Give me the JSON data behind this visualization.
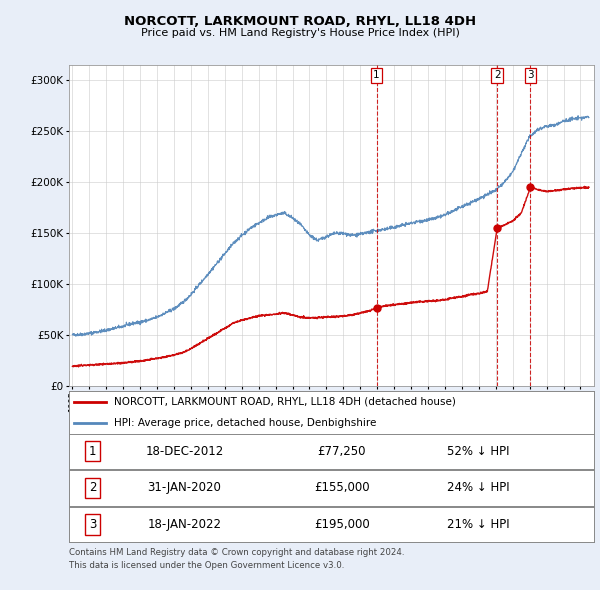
{
  "title": "NORCOTT, LARKMOUNT ROAD, RHYL, LL18 4DH",
  "subtitle": "Price paid vs. HM Land Registry's House Price Index (HPI)",
  "background_color": "#e8eef8",
  "plot_bg_color": "#ffffff",
  "ytick_values": [
    0,
    50000,
    100000,
    150000,
    200000,
    250000,
    300000
  ],
  "ylim": [
    0,
    315000
  ],
  "xlim_start": 1994.8,
  "xlim_end": 2025.8,
  "sale_dates": [
    2012.96,
    2020.08,
    2022.05
  ],
  "sale_prices": [
    77250,
    155000,
    195000
  ],
  "sale_labels": [
    "1",
    "2",
    "3"
  ],
  "vline_color": "#cc0000",
  "marker_color": "#cc0000",
  "legend_entries": [
    "NORCOTT, LARKMOUNT ROAD, RHYL, LL18 4DH (detached house)",
    "HPI: Average price, detached house, Denbighshire"
  ],
  "legend_line_colors": [
    "#cc0000",
    "#5588bb"
  ],
  "table_rows": [
    [
      "1",
      "18-DEC-2012",
      "£77,250",
      "52% ↓ HPI"
    ],
    [
      "2",
      "31-JAN-2020",
      "£155,000",
      "24% ↓ HPI"
    ],
    [
      "3",
      "18-JAN-2022",
      "£195,000",
      "21% ↓ HPI"
    ]
  ],
  "footnote": "Contains HM Land Registry data © Crown copyright and database right 2024.\nThis data is licensed under the Open Government Licence v3.0.",
  "hpi_line_color": "#5588bb",
  "price_line_color": "#cc0000",
  "hpi_points": [
    [
      1995.0,
      50500
    ],
    [
      1995.5,
      51000
    ],
    [
      1996.0,
      52000
    ],
    [
      1996.5,
      53500
    ],
    [
      1997.0,
      55000
    ],
    [
      1997.5,
      57000
    ],
    [
      1998.0,
      59000
    ],
    [
      1998.5,
      61500
    ],
    [
      1999.0,
      63000
    ],
    [
      1999.5,
      65000
    ],
    [
      2000.0,
      68000
    ],
    [
      2000.5,
      72000
    ],
    [
      2001.0,
      76000
    ],
    [
      2001.5,
      82000
    ],
    [
      2002.0,
      90000
    ],
    [
      2002.5,
      100000
    ],
    [
      2003.0,
      110000
    ],
    [
      2003.5,
      120000
    ],
    [
      2004.0,
      130000
    ],
    [
      2004.5,
      140000
    ],
    [
      2005.0,
      148000
    ],
    [
      2005.5,
      155000
    ],
    [
      2006.0,
      160000
    ],
    [
      2006.5,
      165000
    ],
    [
      2007.0,
      168000
    ],
    [
      2007.5,
      170000
    ],
    [
      2008.0,
      165000
    ],
    [
      2008.5,
      158000
    ],
    [
      2009.0,
      148000
    ],
    [
      2009.5,
      143000
    ],
    [
      2010.0,
      147000
    ],
    [
      2010.5,
      150000
    ],
    [
      2011.0,
      150000
    ],
    [
      2011.5,
      148000
    ],
    [
      2012.0,
      149000
    ],
    [
      2012.5,
      151000
    ],
    [
      2013.0,
      153000
    ],
    [
      2013.5,
      154000
    ],
    [
      2014.0,
      156000
    ],
    [
      2014.5,
      158000
    ],
    [
      2015.0,
      160000
    ],
    [
      2015.5,
      162000
    ],
    [
      2016.0,
      163000
    ],
    [
      2016.5,
      165000
    ],
    [
      2017.0,
      168000
    ],
    [
      2017.5,
      172000
    ],
    [
      2018.0,
      176000
    ],
    [
      2018.5,
      180000
    ],
    [
      2019.0,
      184000
    ],
    [
      2019.5,
      188000
    ],
    [
      2020.0,
      192000
    ],
    [
      2020.5,
      200000
    ],
    [
      2021.0,
      210000
    ],
    [
      2021.5,
      228000
    ],
    [
      2022.0,
      245000
    ],
    [
      2022.5,
      252000
    ],
    [
      2023.0,
      255000
    ],
    [
      2023.5,
      256000
    ],
    [
      2024.0,
      260000
    ],
    [
      2024.5,
      262000
    ],
    [
      2025.0,
      263000
    ],
    [
      2025.5,
      264000
    ]
  ],
  "price_points": [
    [
      1995.0,
      20000
    ],
    [
      1995.5,
      20500
    ],
    [
      1996.0,
      21000
    ],
    [
      1996.5,
      21500
    ],
    [
      1997.0,
      22000
    ],
    [
      1997.5,
      22500
    ],
    [
      1998.0,
      23000
    ],
    [
      1998.5,
      24000
    ],
    [
      1999.0,
      25000
    ],
    [
      1999.5,
      26000
    ],
    [
      2000.0,
      27500
    ],
    [
      2000.5,
      29000
    ],
    [
      2001.0,
      31000
    ],
    [
      2001.5,
      33000
    ],
    [
      2002.0,
      37000
    ],
    [
      2002.5,
      42000
    ],
    [
      2003.0,
      47000
    ],
    [
      2003.5,
      52000
    ],
    [
      2004.0,
      57000
    ],
    [
      2004.5,
      62000
    ],
    [
      2005.0,
      65000
    ],
    [
      2005.5,
      67000
    ],
    [
      2006.0,
      69000
    ],
    [
      2006.5,
      70000
    ],
    [
      2007.0,
      71000
    ],
    [
      2007.5,
      72000
    ],
    [
      2008.0,
      70000
    ],
    [
      2008.5,
      68000
    ],
    [
      2009.0,
      67000
    ],
    [
      2009.5,
      67500
    ],
    [
      2010.0,
      68000
    ],
    [
      2010.5,
      68500
    ],
    [
      2011.0,
      69000
    ],
    [
      2011.5,
      70000
    ],
    [
      2012.0,
      72000
    ],
    [
      2012.5,
      74000
    ],
    [
      2012.96,
      77250
    ],
    [
      2013.5,
      79000
    ],
    [
      2014.0,
      80000
    ],
    [
      2014.5,
      81000
    ],
    [
      2015.0,
      82000
    ],
    [
      2015.5,
      83000
    ],
    [
      2016.0,
      83500
    ],
    [
      2016.5,
      84000
    ],
    [
      2017.0,
      85000
    ],
    [
      2017.5,
      87000
    ],
    [
      2018.0,
      88000
    ],
    [
      2018.5,
      90000
    ],
    [
      2019.0,
      91000
    ],
    [
      2019.5,
      93000
    ],
    [
      2020.08,
      155000
    ],
    [
      2020.5,
      158000
    ],
    [
      2021.0,
      162000
    ],
    [
      2021.5,
      170000
    ],
    [
      2022.05,
      195000
    ],
    [
      2022.5,
      193000
    ],
    [
      2023.0,
      191000
    ],
    [
      2023.5,
      192000
    ],
    [
      2024.0,
      193000
    ],
    [
      2024.5,
      194000
    ],
    [
      2025.0,
      194500
    ],
    [
      2025.5,
      195000
    ]
  ]
}
